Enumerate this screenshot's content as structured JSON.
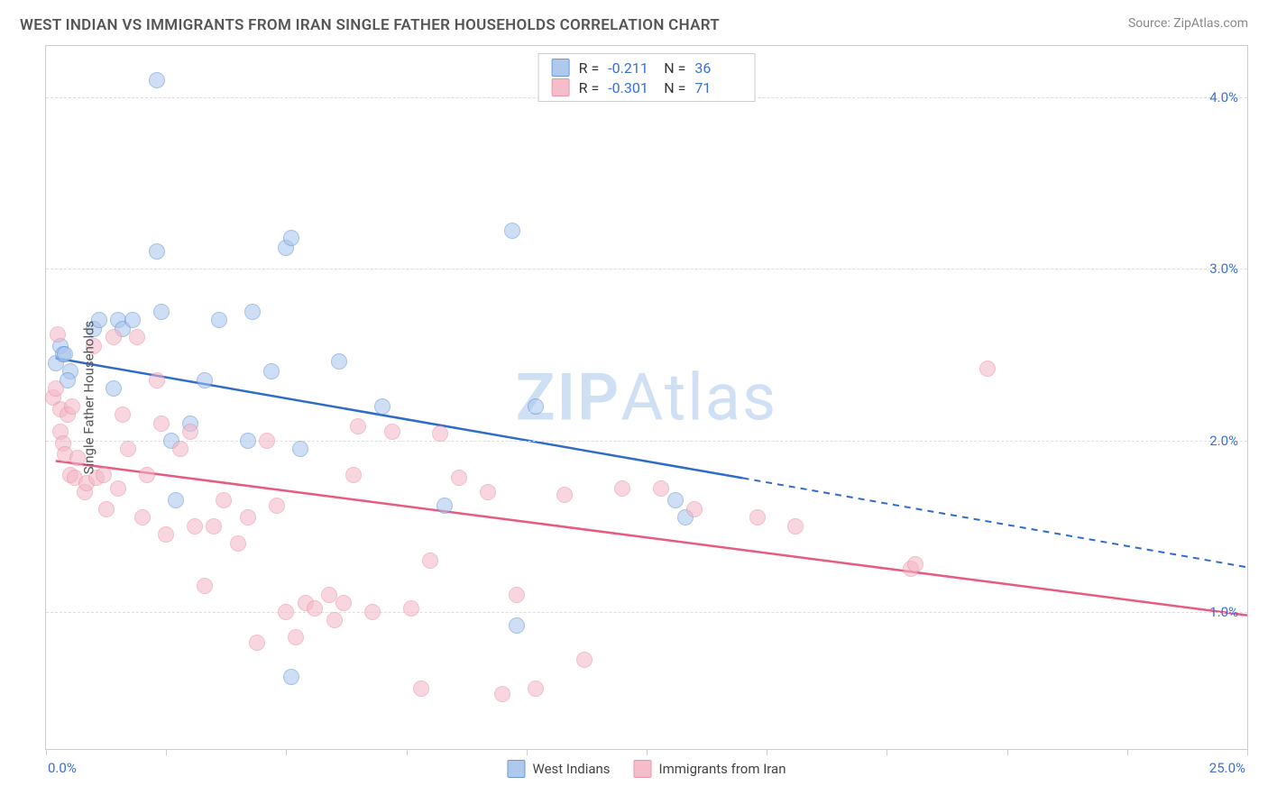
{
  "title": "WEST INDIAN VS IMMIGRANTS FROM IRAN SINGLE FATHER HOUSEHOLDS CORRELATION CHART",
  "source": "Source: ZipAtlas.com",
  "watermark": {
    "zip": "ZIP",
    "atlas": "Atlas",
    "color": "#cfe0f5",
    "fontsize": 72
  },
  "y_axis": {
    "title": "Single Father Households",
    "ticks": [
      1.0,
      2.0,
      3.0,
      4.0
    ],
    "tick_labels": [
      "1.0%",
      "2.0%",
      "3.0%",
      "4.0%"
    ],
    "min": 0.2,
    "max": 4.3,
    "label_color": "#3a6fd8",
    "label_fontsize": 15,
    "grid_color": "#dddddd"
  },
  "x_axis": {
    "min": 0.0,
    "max": 25.0,
    "labels": [
      {
        "value": 0.0,
        "text": "0.0%"
      },
      {
        "value": 25.0,
        "text": "25.0%"
      }
    ],
    "tick_positions": [
      0,
      2.5,
      5,
      7.5,
      10,
      12.5,
      15,
      17.5,
      20,
      22.5,
      25
    ],
    "label_color": "#3a6fd8",
    "label_fontsize": 15
  },
  "series": [
    {
      "name": "West Indians",
      "label": "West Indians",
      "fill_color": "#a7c4ec",
      "stroke_color": "#5a8fd6",
      "fill_opacity": 0.55,
      "marker_radius": 9,
      "R": "-0.211",
      "N": "36",
      "trend": {
        "solid_from_x": 0.2,
        "solid_to_x": 14.5,
        "y_start": 2.48,
        "y_end_solid": 1.78,
        "dashed_to_x": 25.0,
        "y_end_dashed": 1.26,
        "line_color": "#2f6cc9",
        "line_width": 2.5
      },
      "points": [
        [
          0.2,
          2.45
        ],
        [
          0.3,
          2.55
        ],
        [
          0.35,
          2.5
        ],
        [
          0.4,
          2.5
        ],
        [
          0.5,
          2.4
        ],
        [
          0.45,
          2.35
        ],
        [
          1.0,
          2.65
        ],
        [
          1.1,
          2.7
        ],
        [
          1.4,
          2.3
        ],
        [
          1.5,
          2.7
        ],
        [
          1.6,
          2.65
        ],
        [
          1.8,
          2.7
        ],
        [
          2.3,
          3.1
        ],
        [
          2.3,
          4.1
        ],
        [
          2.4,
          2.75
        ],
        [
          2.6,
          2.0
        ],
        [
          2.7,
          1.65
        ],
        [
          3.0,
          2.1
        ],
        [
          3.3,
          2.35
        ],
        [
          3.6,
          2.7
        ],
        [
          4.2,
          2.0
        ],
        [
          4.3,
          2.75
        ],
        [
          4.7,
          2.4
        ],
        [
          5.0,
          3.12
        ],
        [
          5.1,
          3.18
        ],
        [
          5.1,
          0.62
        ],
        [
          5.3,
          1.95
        ],
        [
          6.1,
          2.46
        ],
        [
          7.0,
          2.2
        ],
        [
          8.3,
          1.62
        ],
        [
          9.7,
          3.22
        ],
        [
          9.8,
          0.92
        ],
        [
          10.2,
          2.2
        ],
        [
          13.1,
          1.65
        ],
        [
          13.3,
          1.55
        ]
      ]
    },
    {
      "name": "Immigrants from Iran",
      "label": "Immigrants from Iran",
      "fill_color": "#f4b6c5",
      "stroke_color": "#e98aa2",
      "fill_opacity": 0.55,
      "marker_radius": 9,
      "R": "-0.301",
      "N": "71",
      "trend": {
        "solid_from_x": 0.2,
        "solid_to_x": 25.0,
        "y_start": 1.88,
        "y_end_solid": 0.98,
        "line_color": "#e85b81",
        "line_width": 2.5
      },
      "points": [
        [
          0.15,
          2.25
        ],
        [
          0.2,
          2.3
        ],
        [
          0.25,
          2.62
        ],
        [
          0.3,
          2.18
        ],
        [
          0.3,
          2.05
        ],
        [
          0.35,
          1.98
        ],
        [
          0.4,
          1.92
        ],
        [
          0.45,
          2.15
        ],
        [
          0.5,
          1.8
        ],
        [
          0.55,
          2.2
        ],
        [
          0.6,
          1.78
        ],
        [
          0.65,
          1.9
        ],
        [
          0.8,
          1.7
        ],
        [
          0.85,
          1.75
        ],
        [
          1.0,
          2.55
        ],
        [
          1.05,
          1.78
        ],
        [
          1.2,
          1.8
        ],
        [
          1.25,
          1.6
        ],
        [
          1.4,
          2.6
        ],
        [
          1.5,
          1.72
        ],
        [
          1.6,
          2.15
        ],
        [
          1.7,
          1.95
        ],
        [
          1.9,
          2.6
        ],
        [
          2.0,
          1.55
        ],
        [
          2.1,
          1.8
        ],
        [
          2.3,
          2.35
        ],
        [
          2.4,
          2.1
        ],
        [
          2.5,
          1.45
        ],
        [
          2.8,
          1.95
        ],
        [
          3.0,
          2.05
        ],
        [
          3.1,
          1.5
        ],
        [
          3.3,
          1.15
        ],
        [
          3.5,
          1.5
        ],
        [
          3.7,
          1.65
        ],
        [
          4.0,
          1.4
        ],
        [
          4.2,
          1.55
        ],
        [
          4.4,
          0.82
        ],
        [
          4.6,
          2.0
        ],
        [
          4.8,
          1.62
        ],
        [
          5.0,
          1.0
        ],
        [
          5.2,
          0.85
        ],
        [
          5.4,
          1.05
        ],
        [
          5.6,
          1.02
        ],
        [
          5.9,
          1.1
        ],
        [
          6.0,
          0.95
        ],
        [
          6.2,
          1.05
        ],
        [
          6.4,
          1.8
        ],
        [
          6.5,
          2.08
        ],
        [
          6.8,
          1.0
        ],
        [
          7.2,
          2.05
        ],
        [
          7.6,
          1.02
        ],
        [
          7.8,
          0.55
        ],
        [
          8.0,
          1.3
        ],
        [
          8.2,
          2.04
        ],
        [
          8.6,
          1.78
        ],
        [
          9.2,
          1.7
        ],
        [
          9.5,
          0.52
        ],
        [
          9.8,
          1.1
        ],
        [
          10.2,
          0.55
        ],
        [
          10.8,
          1.68
        ],
        [
          11.2,
          0.72
        ],
        [
          12.0,
          1.72
        ],
        [
          12.8,
          1.72
        ],
        [
          13.5,
          1.6
        ],
        [
          14.8,
          1.55
        ],
        [
          15.6,
          1.5
        ],
        [
          18.0,
          1.25
        ],
        [
          18.1,
          1.28
        ],
        [
          19.6,
          2.42
        ]
      ]
    }
  ],
  "legend_top": {
    "border_color": "#cccccc",
    "r_label": "R =",
    "n_label": "N =",
    "value_color": "#3a6fd8"
  },
  "legend_bottom": {
    "swatch_border_radius": 2
  },
  "background_color": "#ffffff",
  "plot_border_color": "#cccccc"
}
